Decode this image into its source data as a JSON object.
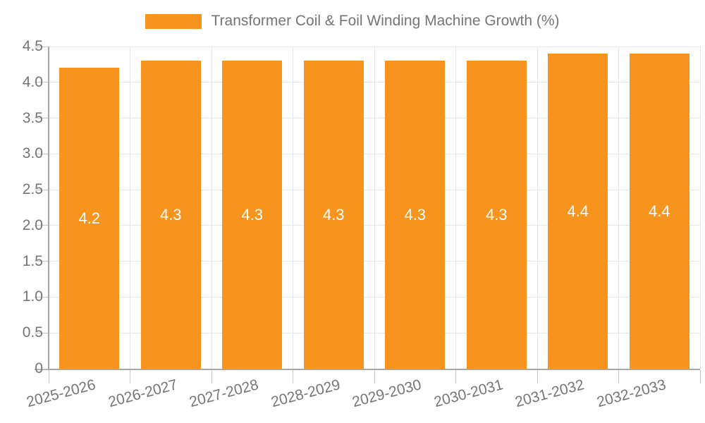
{
  "chart_data": {
    "type": "bar",
    "title": "Transformer Coil & Foil Winding Machine Growth (%)",
    "legend_position": "top",
    "categories": [
      "2025-2026",
      "2026-2027",
      "2027-2028",
      "2028-2029",
      "2029-2030",
      "2030-2031",
      "2031-2032",
      "2032-2033"
    ],
    "values": [
      4.2,
      4.3,
      4.3,
      4.3,
      4.3,
      4.3,
      4.4,
      4.4
    ],
    "value_labels": [
      "4.2",
      "4.3",
      "4.3",
      "4.3",
      "4.3",
      "4.3",
      "4.4",
      "4.4"
    ],
    "xlabel": "",
    "ylabel": "",
    "ylim": [
      0,
      4.5
    ],
    "ytick_values": [
      0,
      0.5,
      1.0,
      1.5,
      2.0,
      2.5,
      3.0,
      3.5,
      4.0,
      4.5
    ],
    "ytick_labels": [
      "0",
      "0.5",
      "1.0",
      "1.5",
      "2.0",
      "2.5",
      "3.0",
      "3.5",
      "4.0",
      "4.5"
    ],
    "grid": true
  },
  "colors": {
    "bar": "#F7941E",
    "value_label": "#FFFFFF",
    "axis_text": "#757575",
    "gridline": "#E6E6E6",
    "axis_line": "#A8A8A8",
    "tick": "#C6C6C6",
    "background": "#FFFFFF"
  }
}
